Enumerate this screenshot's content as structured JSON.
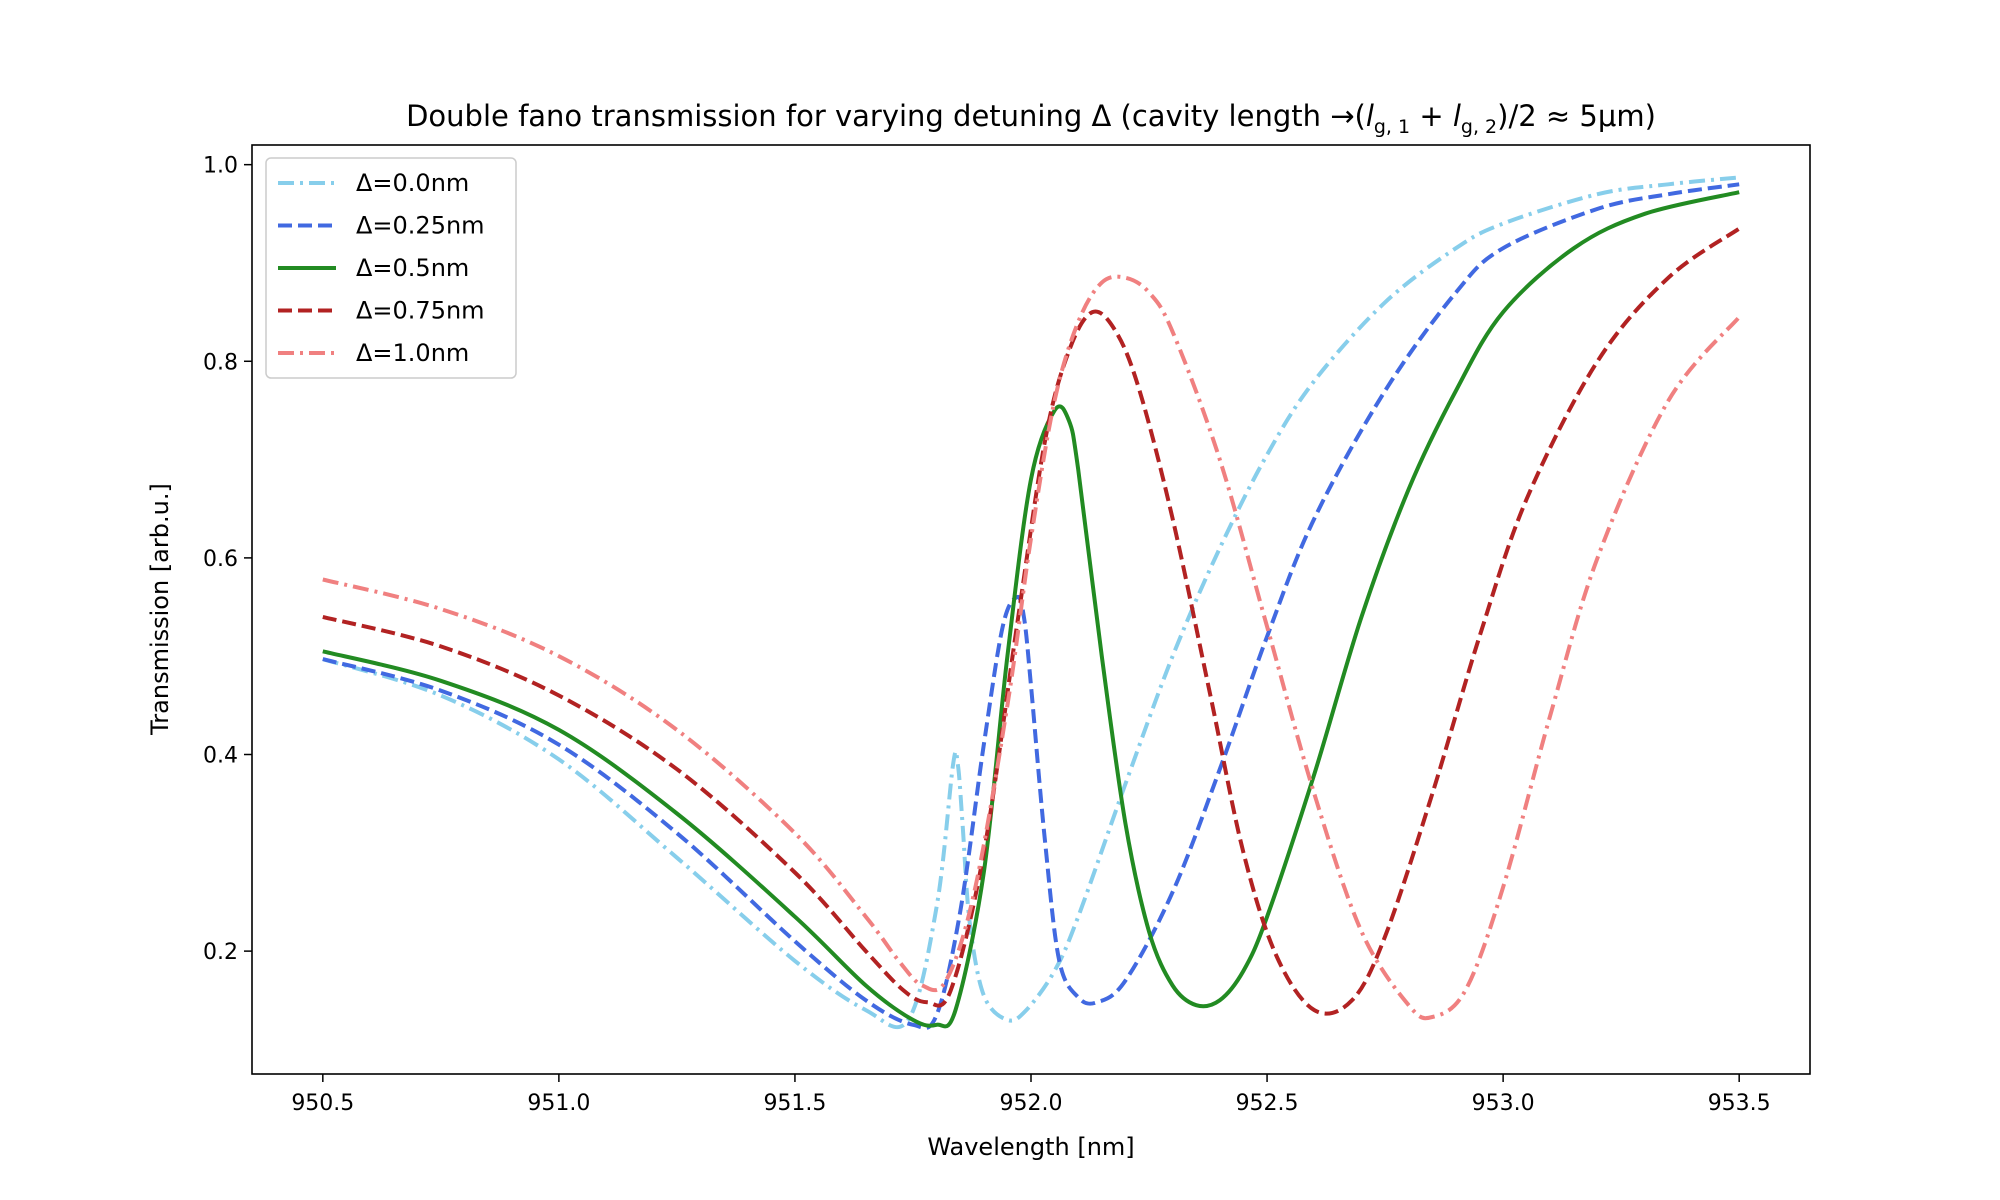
{
  "chart_data": {
    "type": "line",
    "title": "Double fano transmission for varying detuning Δ (cavity length →(l_{g,1}+l_{g,2})/2 ≈ 5μm)",
    "title_parts": {
      "prefix": "Double fano transmission for varying detuning Δ (cavity length →(",
      "l": "l",
      "sub1": "g, 1",
      "plus": " + ",
      "sub2": "g, 2",
      "suffix": ")/2 ≈ 5μm)"
    },
    "xlabel": "Wavelength [nm]",
    "ylabel": "Transmission [arb.u.]",
    "xlim": [
      950.35,
      953.65
    ],
    "ylim": [
      0.075,
      1.02
    ],
    "xticks": [
      950.5,
      951.0,
      951.5,
      952.0,
      952.5,
      953.0,
      953.5
    ],
    "xtick_labels": [
      "950.5",
      "951.0",
      "951.5",
      "952.0",
      "952.5",
      "953.0",
      "953.5"
    ],
    "yticks": [
      0.2,
      0.4,
      0.6,
      0.8,
      1.0
    ],
    "ytick_labels": [
      "0.2",
      "0.4",
      "0.6",
      "0.8",
      "1.0"
    ],
    "grid": false,
    "legend_position": "top-left",
    "series": [
      {
        "name": "Δ=0.0nm",
        "color": "#87ceeb",
        "dash": "dashdot",
        "x": [
          950.5,
          950.75,
          951.0,
          951.25,
          951.5,
          951.65,
          951.74,
          951.8,
          951.835,
          951.845,
          951.855,
          951.87,
          951.9,
          951.95,
          951.99,
          952.05,
          952.1,
          952.2,
          952.3,
          952.4,
          952.5,
          952.6,
          952.75,
          952.9,
          953.0,
          953.2,
          953.35,
          953.5
        ],
        "y": [
          0.497,
          0.46,
          0.395,
          0.295,
          0.19,
          0.14,
          0.13,
          0.245,
          0.39,
          0.39,
          0.33,
          0.23,
          0.155,
          0.13,
          0.14,
          0.18,
          0.235,
          0.37,
          0.5,
          0.61,
          0.705,
          0.78,
          0.86,
          0.915,
          0.94,
          0.97,
          0.98,
          0.987
        ]
      },
      {
        "name": "Δ=0.25nm",
        "color": "#4169e1",
        "dash": "dashed",
        "x": [
          950.5,
          950.75,
          951.0,
          951.25,
          951.5,
          951.65,
          951.75,
          951.8,
          951.85,
          951.9,
          951.94,
          951.97,
          951.985,
          952.0,
          952.03,
          952.06,
          952.1,
          952.14,
          952.2,
          952.3,
          952.4,
          952.5,
          952.6,
          952.75,
          952.9,
          953.0,
          953.2,
          953.35,
          953.5
        ],
        "y": [
          0.497,
          0.465,
          0.41,
          0.32,
          0.21,
          0.15,
          0.125,
          0.135,
          0.24,
          0.41,
          0.53,
          0.56,
          0.54,
          0.47,
          0.31,
          0.19,
          0.153,
          0.148,
          0.17,
          0.26,
          0.385,
          0.52,
          0.64,
          0.77,
          0.87,
          0.915,
          0.955,
          0.97,
          0.98
        ]
      },
      {
        "name": "Δ=0.5nm",
        "color": "#228b22",
        "dash": "solid",
        "x": [
          950.5,
          950.75,
          951.0,
          951.25,
          951.5,
          951.65,
          951.75,
          951.8,
          951.84,
          951.9,
          951.95,
          952.0,
          952.05,
          952.08,
          952.1,
          952.15,
          952.2,
          952.25,
          952.3,
          952.35,
          952.4,
          952.45,
          952.5,
          952.6,
          952.7,
          952.8,
          952.9,
          953.0,
          953.15,
          953.3,
          953.5
        ],
        "y": [
          0.505,
          0.475,
          0.425,
          0.34,
          0.235,
          0.165,
          0.13,
          0.125,
          0.14,
          0.28,
          0.5,
          0.68,
          0.75,
          0.74,
          0.69,
          0.5,
          0.33,
          0.22,
          0.165,
          0.145,
          0.15,
          0.18,
          0.235,
          0.38,
          0.54,
          0.67,
          0.77,
          0.85,
          0.915,
          0.95,
          0.972
        ]
      },
      {
        "name": "Δ=0.75nm",
        "color": "#b22222",
        "dash": "dashed",
        "x": [
          950.5,
          950.75,
          951.0,
          951.25,
          951.5,
          951.65,
          951.73,
          951.78,
          951.83,
          951.9,
          951.97,
          952.03,
          952.08,
          952.13,
          952.18,
          952.23,
          952.3,
          952.38,
          952.45,
          952.52,
          952.6,
          952.68,
          952.75,
          952.85,
          952.95,
          953.05,
          953.2,
          953.35,
          953.5
        ],
        "y": [
          0.54,
          0.51,
          0.46,
          0.385,
          0.28,
          0.2,
          0.16,
          0.148,
          0.16,
          0.3,
          0.53,
          0.72,
          0.81,
          0.85,
          0.83,
          0.77,
          0.64,
          0.46,
          0.3,
          0.195,
          0.14,
          0.15,
          0.215,
          0.36,
          0.52,
          0.66,
          0.8,
          0.885,
          0.935
        ]
      },
      {
        "name": "Δ=1.0nm",
        "color": "#f08080",
        "dash": "dashdot",
        "x": [
          950.5,
          950.75,
          951.0,
          951.25,
          951.5,
          951.65,
          951.72,
          951.77,
          951.82,
          951.88,
          951.95,
          952.0,
          952.05,
          952.1,
          952.15,
          952.2,
          952.25,
          952.3,
          952.4,
          952.5,
          952.6,
          952.7,
          952.8,
          952.85,
          952.92,
          953.0,
          953.1,
          953.2,
          953.35,
          953.5
        ],
        "y": [
          0.578,
          0.548,
          0.5,
          0.425,
          0.32,
          0.235,
          0.19,
          0.165,
          0.17,
          0.26,
          0.45,
          0.62,
          0.76,
          0.84,
          0.88,
          0.885,
          0.87,
          0.83,
          0.7,
          0.53,
          0.36,
          0.22,
          0.145,
          0.133,
          0.16,
          0.265,
          0.44,
          0.6,
          0.76,
          0.845
        ]
      }
    ]
  }
}
